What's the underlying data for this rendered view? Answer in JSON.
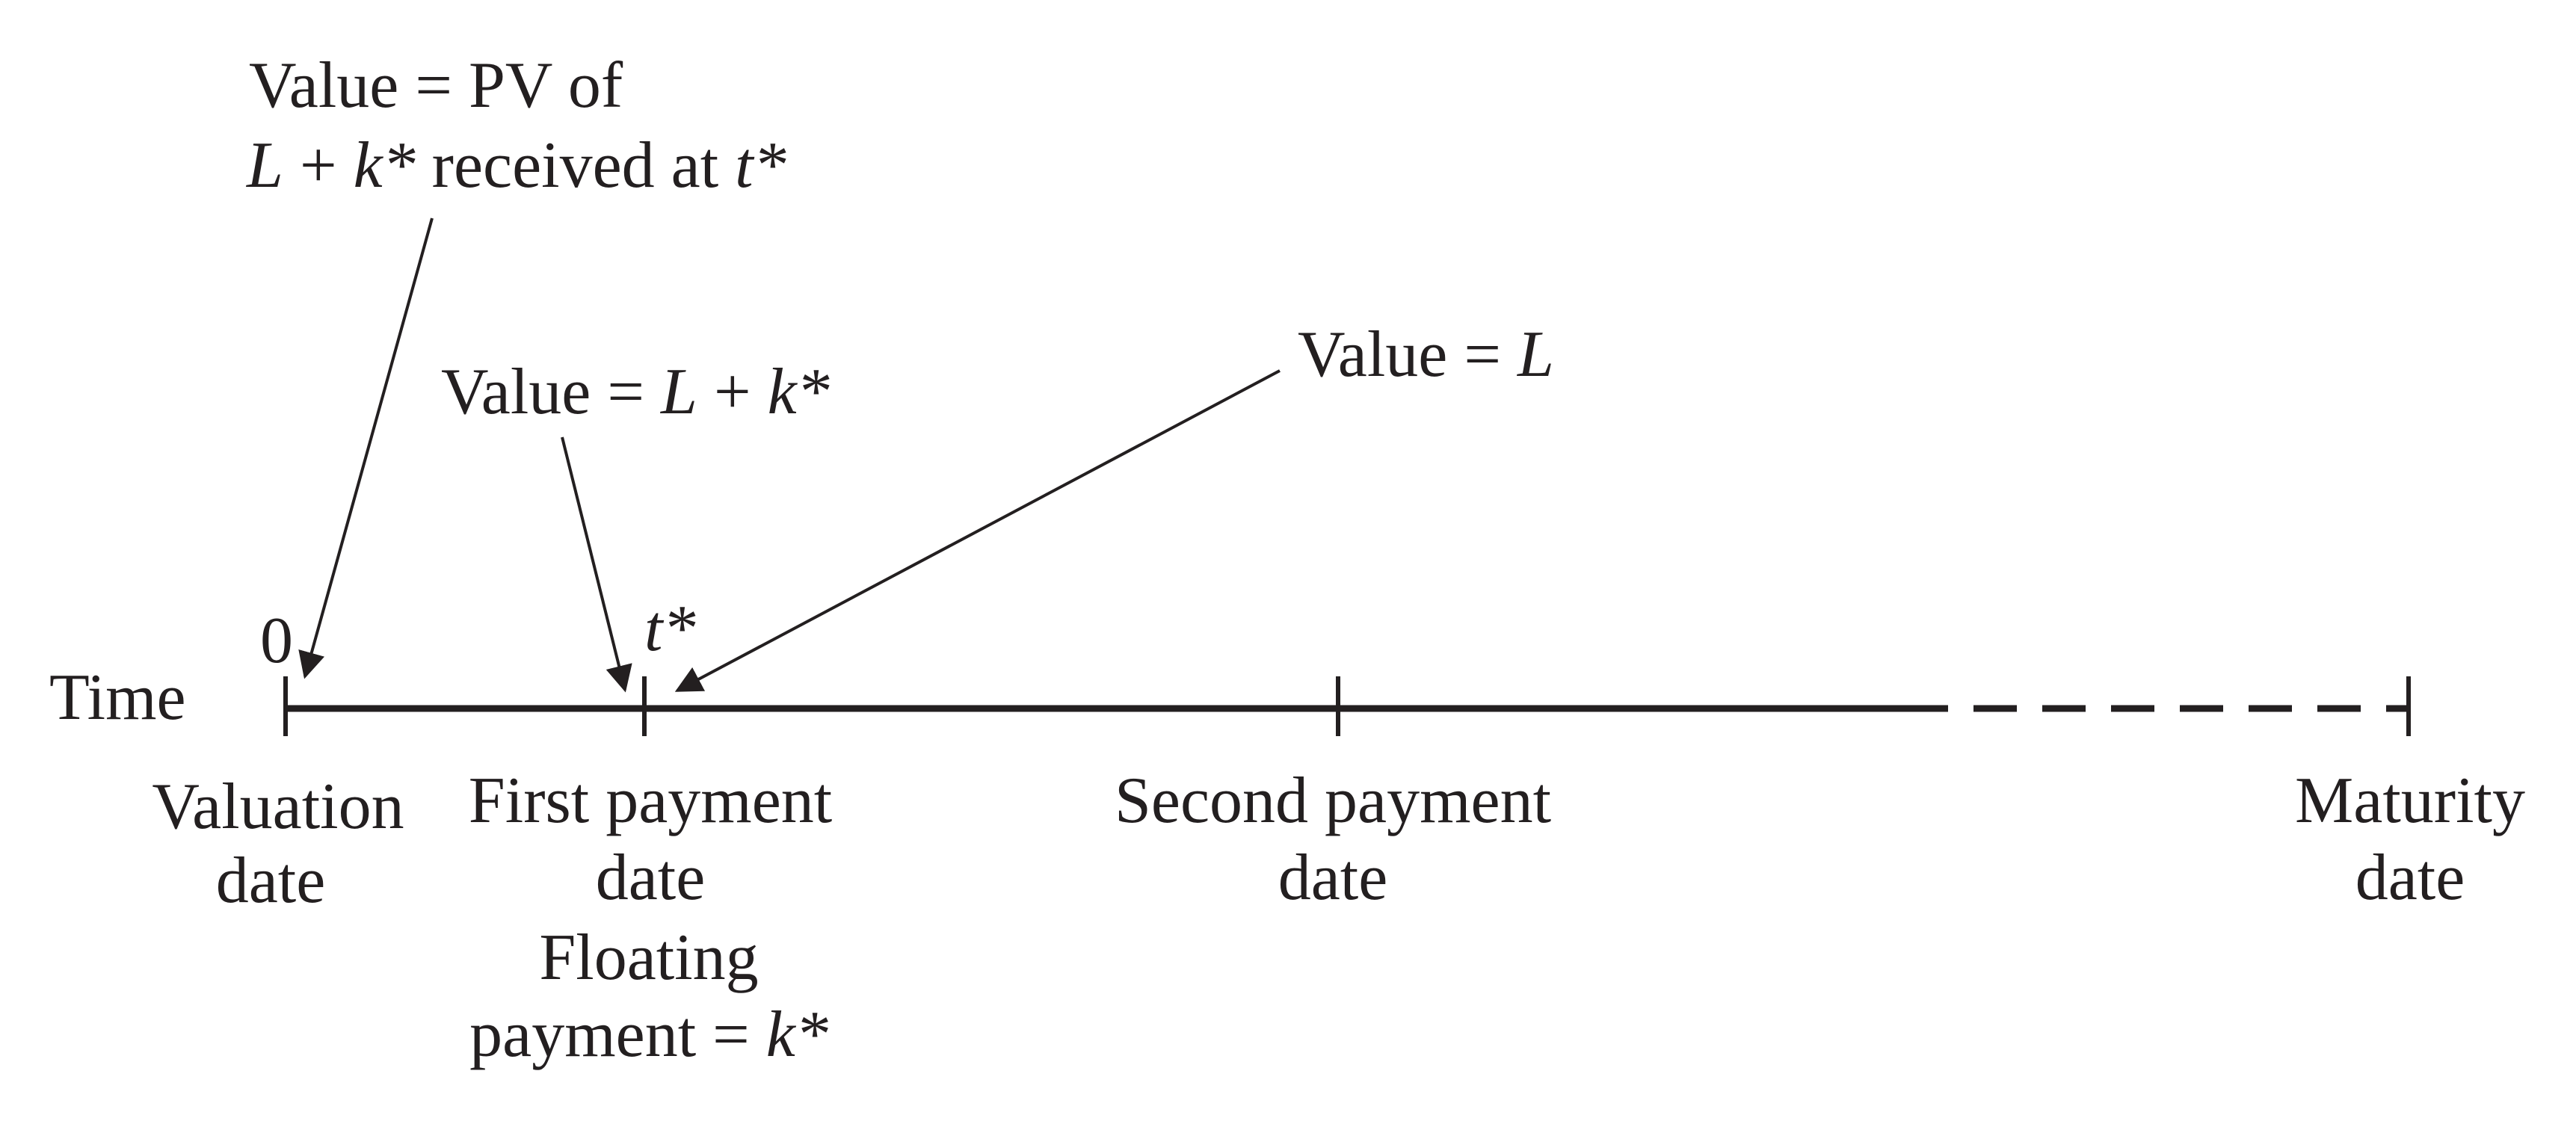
{
  "axis": {
    "label": "Time",
    "origin_label": "0",
    "t_label": "t*"
  },
  "dates": {
    "valuation": [
      "Valuation",
      "date"
    ],
    "first": [
      "First payment",
      "date"
    ],
    "floating": {
      "line1": "Floating",
      "line2_prefix": "payment = ",
      "line2_var": "k*"
    },
    "second": [
      "Second payment",
      "date"
    ],
    "maturity": [
      "Maturity",
      "date"
    ]
  },
  "annotations": {
    "pv": {
      "line1": "Value = PV of",
      "line2_L": "L",
      "line2_plus": " + ",
      "line2_k": "k*",
      "line2_mid": " received at ",
      "line2_t": "t*"
    },
    "lk": {
      "prefix": "Value = ",
      "L": "L",
      "plus": " + ",
      "k": "k*"
    },
    "l": {
      "prefix": "Value = ",
      "L": "L"
    }
  },
  "colors": {
    "ink": "#231f20",
    "background": "#ffffff"
  }
}
